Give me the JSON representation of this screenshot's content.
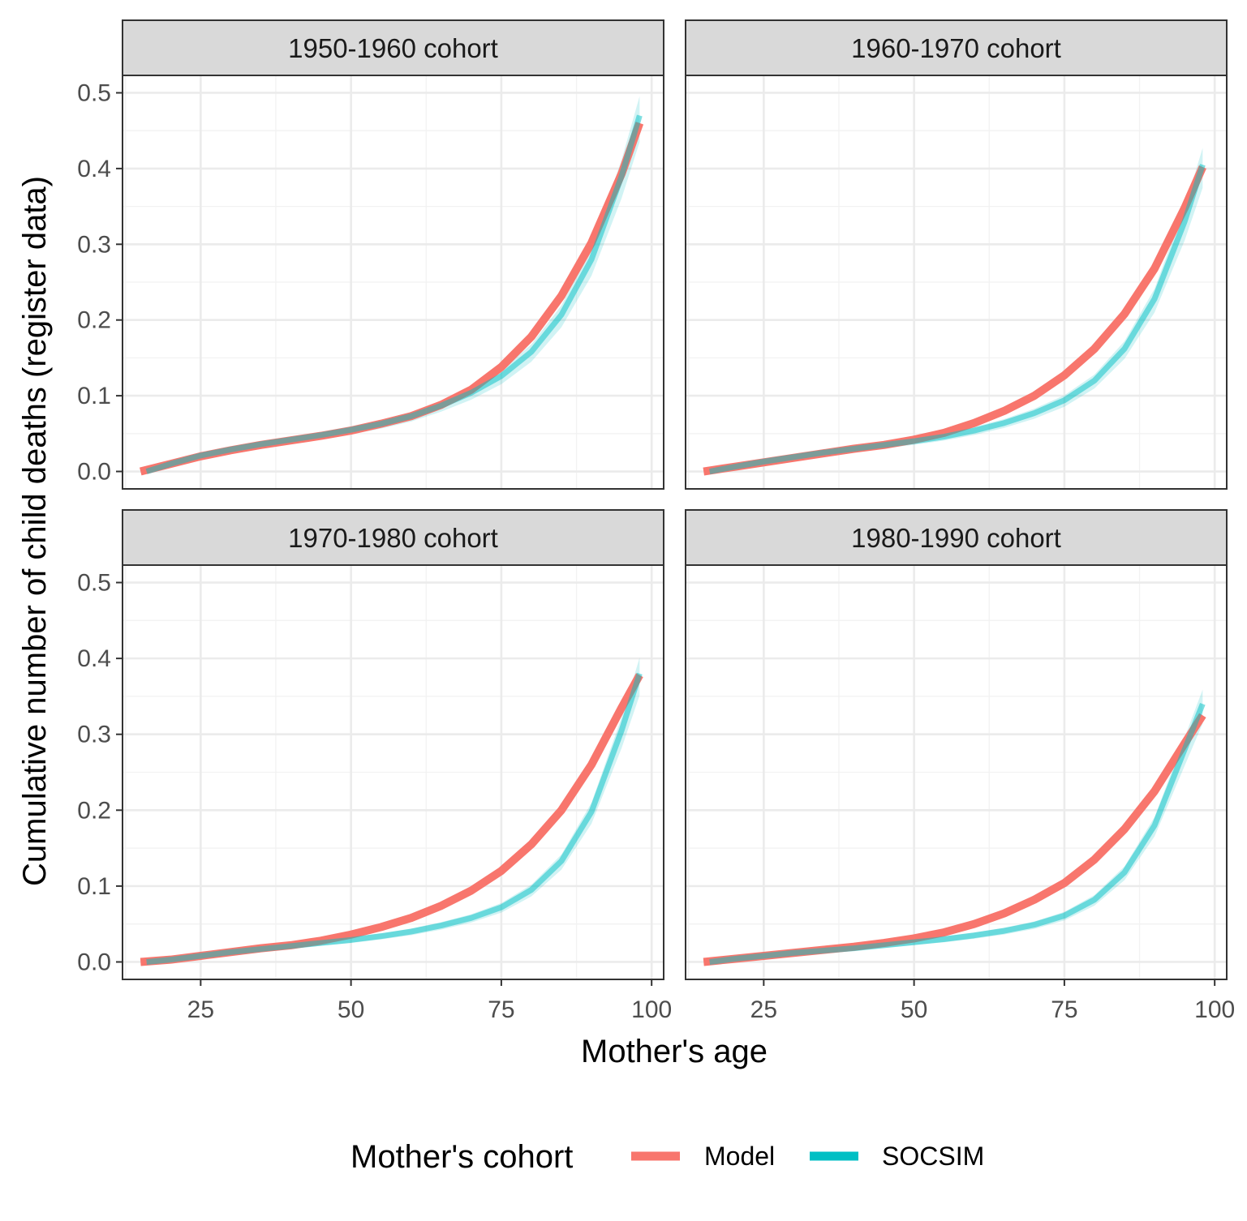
{
  "chart_data": {
    "type": "line",
    "xlabel": "Mother's age",
    "ylabel": "Cumulative number of child deaths (register data)",
    "xlim": [
      12,
      102
    ],
    "ylim": [
      -0.023,
      0.523
    ],
    "x_ticks": [
      25,
      50,
      75,
      100
    ],
    "x_tick_labels": [
      "25",
      "50",
      "75",
      "100"
    ],
    "y_ticks": [
      0.0,
      0.1,
      0.2,
      0.3,
      0.4,
      0.5
    ],
    "y_tick_labels": [
      "0.0",
      "0.1",
      "0.2",
      "0.3",
      "0.4",
      "0.5"
    ],
    "grid": true,
    "legend": {
      "title": "Mother's cohort",
      "position": "bottom",
      "entries": [
        {
          "label": "Model",
          "color": "#F8766D"
        },
        {
          "label": "SOCSIM",
          "color": "#00BFC4"
        }
      ]
    },
    "colors": {
      "Model": "#F8766D",
      "SOCSIM": "#00BFC4"
    },
    "panels": [
      {
        "title": "1950-1960 cohort",
        "series": [
          {
            "name": "Model",
            "x": [
              15,
              20,
              25,
              30,
              35,
              40,
              45,
              50,
              55,
              60,
              65,
              70,
              75,
              80,
              85,
              90,
              95,
              98
            ],
            "values": [
              0.0,
              0.01,
              0.02,
              0.028,
              0.035,
              0.041,
              0.047,
              0.054,
              0.063,
              0.073,
              0.088,
              0.108,
              0.138,
              0.178,
              0.232,
              0.302,
              0.393,
              0.46
            ]
          },
          {
            "name": "SOCSIM",
            "x": [
              16,
              20,
              25,
              30,
              35,
              40,
              45,
              50,
              55,
              60,
              65,
              70,
              75,
              80,
              85,
              90,
              95,
              98
            ],
            "values": [
              0.0,
              0.01,
              0.021,
              0.029,
              0.036,
              0.042,
              0.048,
              0.055,
              0.063,
              0.073,
              0.087,
              0.104,
              0.126,
              0.158,
              0.207,
              0.28,
              0.39,
              0.47
            ]
          }
        ]
      },
      {
        "title": "1960-1970 cohort",
        "series": [
          {
            "name": "Model",
            "x": [
              15,
              20,
              25,
              30,
              35,
              40,
              45,
              50,
              55,
              60,
              65,
              70,
              75,
              80,
              85,
              90,
              95,
              98
            ],
            "values": [
              0.0,
              0.006,
              0.012,
              0.018,
              0.024,
              0.03,
              0.035,
              0.042,
              0.051,
              0.064,
              0.08,
              0.1,
              0.127,
              0.162,
              0.208,
              0.268,
              0.348,
              0.402
            ]
          },
          {
            "name": "SOCSIM",
            "x": [
              16,
              20,
              25,
              30,
              35,
              40,
              45,
              50,
              55,
              60,
              65,
              70,
              75,
              80,
              85,
              90,
              95,
              98
            ],
            "values": [
              0.0,
              0.006,
              0.013,
              0.019,
              0.025,
              0.03,
              0.035,
              0.04,
              0.046,
              0.054,
              0.064,
              0.077,
              0.094,
              0.12,
              0.162,
              0.228,
              0.33,
              0.405
            ]
          }
        ]
      },
      {
        "title": "1970-1980 cohort",
        "series": [
          {
            "name": "Model",
            "x": [
              15,
              20,
              25,
              30,
              35,
              40,
              45,
              50,
              55,
              60,
              65,
              70,
              75,
              80,
              85,
              90,
              95,
              98
            ],
            "values": [
              0.0,
              0.003,
              0.008,
              0.013,
              0.018,
              0.022,
              0.028,
              0.036,
              0.046,
              0.058,
              0.074,
              0.094,
              0.12,
              0.155,
              0.2,
              0.26,
              0.335,
              0.378
            ]
          },
          {
            "name": "SOCSIM",
            "x": [
              16,
              20,
              25,
              30,
              35,
              40,
              45,
              50,
              55,
              60,
              65,
              70,
              75,
              80,
              85,
              90,
              95,
              98
            ],
            "values": [
              0.0,
              0.003,
              0.008,
              0.013,
              0.017,
              0.021,
              0.025,
              0.029,
              0.034,
              0.04,
              0.048,
              0.058,
              0.072,
              0.095,
              0.133,
              0.198,
              0.305,
              0.38
            ]
          }
        ]
      },
      {
        "title": "1980-1990 cohort",
        "series": [
          {
            "name": "Model",
            "x": [
              15,
              20,
              25,
              30,
              35,
              40,
              45,
              50,
              55,
              60,
              65,
              70,
              75,
              80,
              85,
              90,
              95,
              98
            ],
            "values": [
              0.0,
              0.004,
              0.008,
              0.012,
              0.016,
              0.02,
              0.025,
              0.031,
              0.039,
              0.05,
              0.064,
              0.082,
              0.104,
              0.135,
              0.175,
              0.225,
              0.288,
              0.325
            ]
          },
          {
            "name": "SOCSIM",
            "x": [
              16,
              20,
              25,
              30,
              35,
              40,
              45,
              50,
              55,
              60,
              65,
              70,
              75,
              80,
              85,
              90,
              95,
              98
            ],
            "values": [
              0.0,
              0.004,
              0.008,
              0.012,
              0.015,
              0.018,
              0.022,
              0.026,
              0.03,
              0.035,
              0.041,
              0.049,
              0.061,
              0.082,
              0.118,
              0.18,
              0.28,
              0.34
            ]
          }
        ]
      }
    ]
  }
}
